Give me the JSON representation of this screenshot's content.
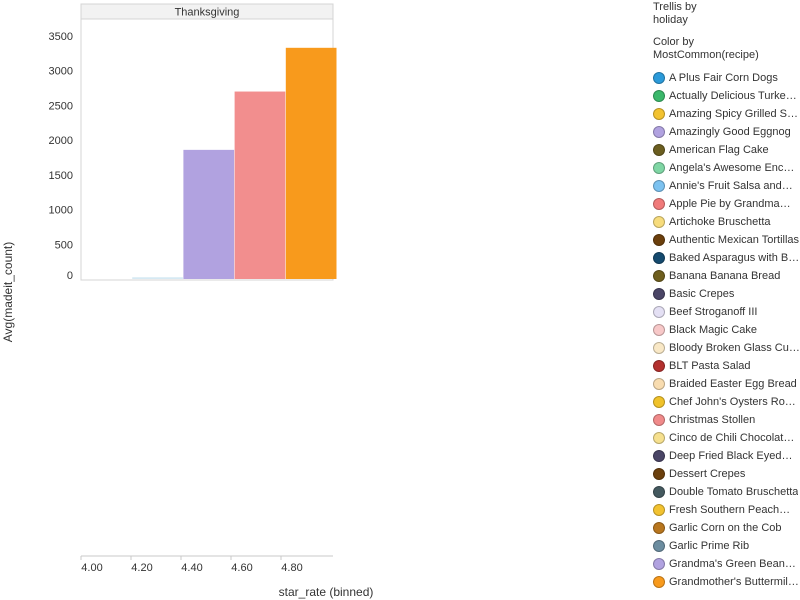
{
  "chart_data": {
    "type": "bar",
    "panel_title": "Thanksgiving",
    "xlabel": "star_rate (binned)",
    "ylabel": "Avg(madeit_count)",
    "x_ticks": [
      "4.00",
      "4.20",
      "4.40",
      "4.60",
      "4.80"
    ],
    "y_ticks": [
      "0",
      "500",
      "1000",
      "1500",
      "2000",
      "2500",
      "3000",
      "3500"
    ],
    "ylim": [
      0,
      3500
    ],
    "bars": [
      {
        "bin": "4.20",
        "value": 25,
        "color": "#d6e9f3"
      },
      {
        "bin": "4.40",
        "value": 1860,
        "color": "#b1a2e0"
      },
      {
        "bin": "4.60",
        "value": 2700,
        "color": "#f28e8e"
      },
      {
        "bin": "4.80",
        "value": 3330,
        "color": "#f89a1c"
      }
    ]
  },
  "legend": {
    "trellis_title": "Trellis by",
    "trellis_field": "holiday",
    "color_title": "Color by",
    "color_field": "MostCommon(recipe)",
    "items": [
      {
        "label": "A Plus Fair Corn Dogs",
        "color": "#2b9ad9"
      },
      {
        "label": "Actually Delicious Turke…",
        "color": "#3bb86b"
      },
      {
        "label": "Amazing Spicy Grilled S…",
        "color": "#f2c230"
      },
      {
        "label": "Amazingly Good Eggnog",
        "color": "#b1a2e0"
      },
      {
        "label": "American Flag Cake",
        "color": "#6b5e20"
      },
      {
        "label": "Angela's Awesome Enc…",
        "color": "#7fd6a4"
      },
      {
        "label": "Annie's Fruit Salsa and…",
        "color": "#7cc2f0"
      },
      {
        "label": "Apple Pie by Grandma…",
        "color": "#f07a7a"
      },
      {
        "label": "Artichoke Bruschetta",
        "color": "#f7dc7c"
      },
      {
        "label": "Authentic Mexican Tortillas",
        "color": "#6b3f0c"
      },
      {
        "label": "Baked Asparagus with B…",
        "color": "#154a6e"
      },
      {
        "label": "Banana Banana Bread",
        "color": "#6e5e1e"
      },
      {
        "label": "Basic Crepes",
        "color": "#4a4566"
      },
      {
        "label": "Beef Stroganoff III",
        "color": "#e4e0f4"
      },
      {
        "label": "Black Magic Cake",
        "color": "#f7c8c8"
      },
      {
        "label": "Bloody Broken Glass Cu…",
        "color": "#f9e8c6"
      },
      {
        "label": "BLT Pasta Salad",
        "color": "#b3302e"
      },
      {
        "label": "Braided Easter Egg Bread",
        "color": "#f8dcb0"
      },
      {
        "label": "Chef John's Oysters Ro…",
        "color": "#f0c22a"
      },
      {
        "label": "Christmas Stollen",
        "color": "#f08a8a"
      },
      {
        "label": "Cinco de Chili Chocolat…",
        "color": "#f6e08e"
      },
      {
        "label": "Deep Fried Black Eyed…",
        "color": "#4a4566"
      },
      {
        "label": "Dessert Crepes",
        "color": "#6b3f0c"
      },
      {
        "label": "Double Tomato Bruschetta",
        "color": "#44595f"
      },
      {
        "label": "Fresh Southern Peach…",
        "color": "#f2c230"
      },
      {
        "label": "Garlic Corn on the Cob",
        "color": "#b8761e"
      },
      {
        "label": "Garlic Prime Rib",
        "color": "#6c8da0"
      },
      {
        "label": "Grandma's Green Bean…",
        "color": "#b1a2e0"
      },
      {
        "label": "Grandmother's Buttermil…",
        "color": "#f89a1c"
      }
    ]
  }
}
